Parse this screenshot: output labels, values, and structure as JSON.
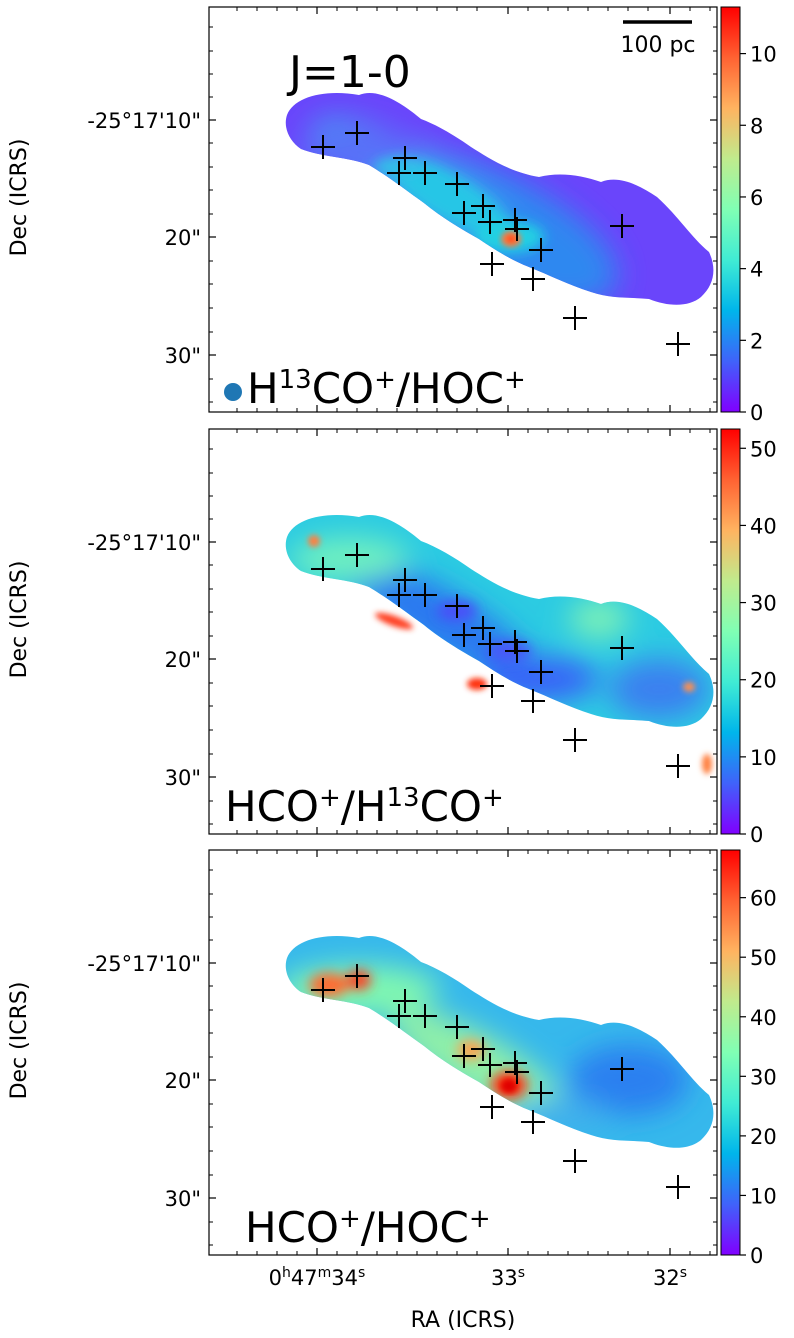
{
  "figure": {
    "transition_label": "J=1-0",
    "scalebar_label": "100 pc",
    "xlabel": "RA (ICRS)",
    "ylabel": "Dec (ICRS)"
  },
  "chart_data": [
    {
      "type": "heatmap",
      "panel_label": "H$^{13}$CO$^+$/HOC$^+$",
      "panel_label_parts": [
        "H",
        "13",
        "CO",
        "+",
        "/HOC",
        "+"
      ],
      "beam_color": "#1f77b4",
      "colorbar": {
        "cmap": "rainbow",
        "vmin": 0,
        "vmax": 11.3,
        "ticks": [
          0,
          2,
          4,
          6,
          8,
          10
        ],
        "tick_labels": [
          "0",
          "2",
          "4",
          "6",
          "8",
          "10"
        ]
      },
      "ylabel": "Dec (ICRS)",
      "ytick_labels": [
        "-25°17'10\"",
        "20\"",
        "30\""
      ],
      "show_xtick_labels": false
    },
    {
      "type": "heatmap",
      "panel_label": "HCO$^+$/H$^{13}$CO$^+$",
      "panel_label_parts": [
        "HCO",
        "+",
        "/H",
        "13",
        "CO",
        "+"
      ],
      "colorbar": {
        "cmap": "rainbow",
        "vmin": 0,
        "vmax": 52.5,
        "ticks": [
          0,
          10,
          20,
          30,
          40,
          50
        ],
        "tick_labels": [
          "0",
          "10",
          "20",
          "30",
          "40",
          "50"
        ]
      },
      "ylabel": "Dec (ICRS)",
      "ytick_labels": [
        "-25°17'10\"",
        "20\"",
        "30\""
      ],
      "show_xtick_labels": false
    },
    {
      "type": "heatmap",
      "panel_label": "HCO$^+$/HOC$^+$",
      "panel_label_parts": [
        "HCO",
        "+",
        "/HOC",
        "+"
      ],
      "colorbar": {
        "cmap": "rainbow",
        "vmin": 0,
        "vmax": 68,
        "ticks": [
          0,
          10,
          20,
          30,
          40,
          50,
          60
        ],
        "tick_labels": [
          "0",
          "10",
          "20",
          "30",
          "40",
          "50",
          "60"
        ]
      },
      "ylabel": "Dec (ICRS)",
      "ytick_labels": [
        "-25°17'10\"",
        "20\"",
        "30\""
      ],
      "xlabel": "RA (ICRS)",
      "xtick_labels": [
        "0h47m34s",
        "33s",
        "32s"
      ],
      "show_xtick_labels": true
    }
  ]
}
